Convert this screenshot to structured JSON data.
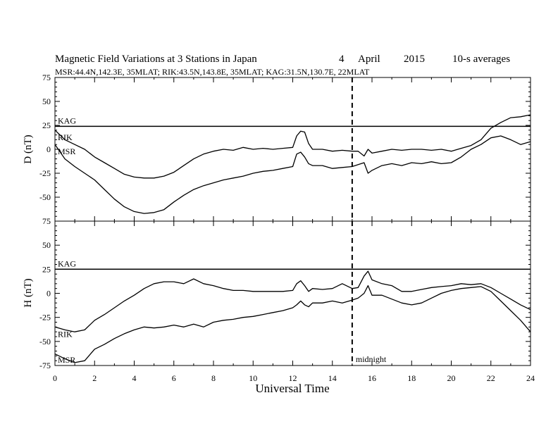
{
  "header": {
    "title": "Magnetic Field Variations at 3 Stations in Japan",
    "day": "4",
    "month": "April",
    "year": "2015",
    "averaging": "10-s averages",
    "stations_line": "MSR:44.4N,142.3E, 35MLAT;  RIK:43.5N,143.8E, 35MLAT;  KAG:31.5N,130.7E, 22MLAT"
  },
  "colors": {
    "line": "#000000",
    "background": "#ffffff"
  },
  "chart_data": [
    {
      "type": "line",
      "panel": "top",
      "ylabel": "D (nT)",
      "xlabel": "",
      "xlim": [
        0,
        24
      ],
      "ylim": [
        -75,
        75
      ],
      "yticks": [
        75,
        50,
        25,
        0,
        -25,
        -50,
        -75
      ],
      "xticks": [
        0,
        2,
        4,
        6,
        8,
        10,
        12,
        14,
        16,
        18,
        20,
        22,
        24
      ],
      "grid": false,
      "series": [
        {
          "name": "KAG",
          "x": [
            0,
            24
          ],
          "y": [
            24,
            24
          ]
        },
        {
          "name": "RIK",
          "x": [
            0,
            0.5,
            1,
            1.5,
            2,
            2.5,
            3,
            3.5,
            4,
            4.5,
            5,
            5.5,
            6,
            6.5,
            7,
            7.5,
            8,
            8.5,
            9,
            9.5,
            10,
            10.5,
            11,
            11.5,
            12,
            12.2,
            12.4,
            12.6,
            12.8,
            13,
            13.5,
            14,
            14.5,
            15,
            15.3,
            15.6,
            15.8,
            16,
            16.5,
            17,
            17.5,
            18,
            18.5,
            19,
            19.5,
            20,
            20.5,
            21,
            21.5,
            22,
            22.5,
            23,
            23.5,
            24
          ],
          "y": [
            20,
            10,
            5,
            0,
            -8,
            -14,
            -20,
            -26,
            -29,
            -30,
            -30,
            -28,
            -24,
            -17,
            -10,
            -5,
            -2,
            0,
            -1,
            2,
            0,
            1,
            0,
            1,
            2,
            14,
            19,
            18,
            6,
            0,
            0,
            -2,
            -1,
            -2,
            -2,
            -7,
            0,
            -4,
            -2,
            0,
            -1,
            0,
            0,
            -1,
            0,
            -2,
            1,
            4,
            10,
            22,
            28,
            33,
            34,
            36
          ]
        },
        {
          "name": "MSR",
          "x": [
            0,
            0.5,
            1,
            1.5,
            2,
            2.5,
            3,
            3.5,
            4,
            4.5,
            5,
            5.5,
            6,
            6.5,
            7,
            7.5,
            8,
            8.5,
            9,
            9.5,
            10,
            10.5,
            11,
            11.5,
            12,
            12.2,
            12.4,
            12.6,
            12.8,
            13,
            13.5,
            14,
            14.5,
            15,
            15.3,
            15.6,
            15.8,
            16,
            16.5,
            17,
            17.5,
            18,
            18.5,
            19,
            19.5,
            20,
            20.5,
            21,
            21.5,
            22,
            22.5,
            23,
            23.5,
            24
          ],
          "y": [
            5,
            -10,
            -18,
            -25,
            -32,
            -42,
            -52,
            -60,
            -65,
            -67,
            -66,
            -63,
            -55,
            -48,
            -42,
            -38,
            -35,
            -32,
            -30,
            -28,
            -25,
            -23,
            -22,
            -20,
            -18,
            -5,
            -3,
            -8,
            -15,
            -17,
            -17,
            -20,
            -19,
            -18,
            -16,
            -14,
            -25,
            -22,
            -17,
            -15,
            -17,
            -14,
            -15,
            -13,
            -15,
            -14,
            -8,
            0,
            5,
            12,
            14,
            10,
            5,
            8
          ]
        }
      ]
    },
    {
      "type": "line",
      "panel": "bottom",
      "ylabel": "H (nT)",
      "xlabel": "Universal Time",
      "xlim": [
        0,
        24
      ],
      "ylim": [
        -75,
        75
      ],
      "yticks": [
        75,
        50,
        25,
        0,
        -25,
        -50,
        -75
      ],
      "xticks": [
        0,
        2,
        4,
        6,
        8,
        10,
        12,
        14,
        16,
        18,
        20,
        22,
        24
      ],
      "grid": false,
      "annotation": {
        "text": "midnight",
        "x": 15
      },
      "series": [
        {
          "name": "KAG",
          "x": [
            0,
            24
          ],
          "y": [
            25,
            25
          ]
        },
        {
          "name": "RIK",
          "x": [
            0,
            0.5,
            1,
            1.5,
            2,
            2.5,
            3,
            3.5,
            4,
            4.5,
            5,
            5.5,
            6,
            6.5,
            7,
            7.5,
            8,
            8.5,
            9,
            9.5,
            10,
            10.5,
            11,
            11.5,
            12,
            12.2,
            12.4,
            12.6,
            12.8,
            13,
            13.5,
            14,
            14.5,
            15,
            15.3,
            15.6,
            15.8,
            16,
            16.5,
            17,
            17.5,
            18,
            18.5,
            19,
            19.5,
            20,
            20.5,
            21,
            21.5,
            22,
            22.5,
            23,
            23.5,
            24
          ],
          "y": [
            -35,
            -38,
            -40,
            -38,
            -28,
            -22,
            -15,
            -8,
            -2,
            5,
            10,
            12,
            12,
            10,
            15,
            10,
            8,
            5,
            3,
            3,
            2,
            2,
            2,
            2,
            3,
            10,
            13,
            8,
            2,
            5,
            4,
            5,
            10,
            5,
            6,
            18,
            23,
            14,
            10,
            8,
            2,
            2,
            4,
            6,
            7,
            8,
            10,
            9,
            10,
            6,
            0,
            -6,
            -12,
            -17
          ]
        },
        {
          "name": "MSR",
          "x": [
            0,
            0.5,
            1,
            1.5,
            2,
            2.5,
            3,
            3.5,
            4,
            4.5,
            5,
            5.5,
            6,
            6.5,
            7,
            7.5,
            8,
            8.5,
            9,
            9.5,
            10,
            10.5,
            11,
            11.5,
            12,
            12.2,
            12.4,
            12.6,
            12.8,
            13,
            13.5,
            14,
            14.5,
            15,
            15.3,
            15.6,
            15.8,
            16,
            16.5,
            17,
            17.5,
            18,
            18.5,
            19,
            19.5,
            20,
            20.5,
            21,
            21.5,
            22,
            22.5,
            23,
            23.5,
            24
          ],
          "y": [
            -63,
            -68,
            -72,
            -70,
            -58,
            -53,
            -47,
            -42,
            -38,
            -35,
            -36,
            -35,
            -33,
            -35,
            -32,
            -35,
            -30,
            -28,
            -27,
            -25,
            -24,
            -22,
            -20,
            -18,
            -15,
            -12,
            -8,
            -12,
            -14,
            -10,
            -10,
            -8,
            -10,
            -7,
            -5,
            0,
            8,
            -2,
            -2,
            -6,
            -10,
            -12,
            -10,
            -5,
            0,
            3,
            5,
            6,
            7,
            2,
            -8,
            -18,
            -28,
            -40
          ]
        }
      ]
    }
  ]
}
